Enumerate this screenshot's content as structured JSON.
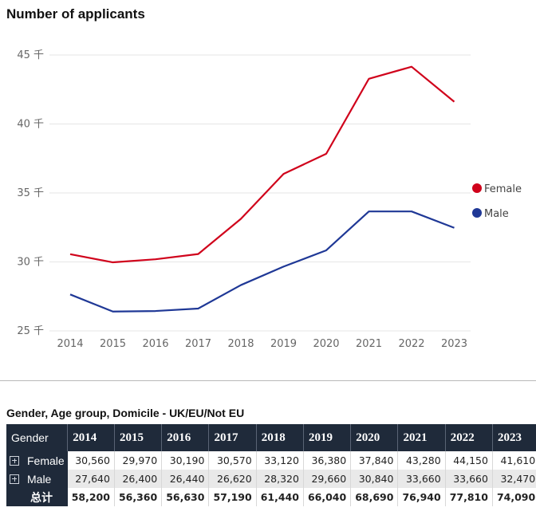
{
  "chart": {
    "title": "Number of applicants"
  },
  "chart_data": {
    "type": "line",
    "title": "Number of applicants",
    "x": [
      "2014",
      "2015",
      "2016",
      "2017",
      "2018",
      "2019",
      "2020",
      "2021",
      "2022",
      "2023"
    ],
    "ylim": [
      25000,
      45000
    ],
    "yticks": [
      25000,
      30000,
      35000,
      40000,
      45000
    ],
    "ytick_labels": [
      "25 千",
      "30 千",
      "35 千",
      "40 千",
      "45 千"
    ],
    "grid": true,
    "legend": "right",
    "series": [
      {
        "name": "Female",
        "color": "#d0021b",
        "values": [
          30560,
          29970,
          30190,
          30570,
          33120,
          36380,
          37840,
          43280,
          44150,
          41610
        ]
      },
      {
        "name": "Male",
        "color": "#1f3896",
        "values": [
          27640,
          26400,
          26440,
          26620,
          28320,
          29660,
          30840,
          33660,
          33660,
          32470
        ]
      }
    ]
  },
  "table": {
    "title": "Gender, Age group, Domicile - UK/EU/Not EU",
    "header_label": "Gender",
    "years": [
      "2014",
      "2015",
      "2016",
      "2017",
      "2018",
      "2019",
      "2020",
      "2021",
      "2022",
      "2023"
    ],
    "rows": [
      {
        "label": "Female",
        "values": [
          "30,560",
          "29,970",
          "30,190",
          "30,570",
          "33,120",
          "36,380",
          "37,840",
          "43,280",
          "44,150",
          "41,610"
        ]
      },
      {
        "label": "Male",
        "values": [
          "27,640",
          "26,400",
          "26,440",
          "26,620",
          "28,320",
          "29,660",
          "30,840",
          "33,660",
          "33,660",
          "32,470"
        ]
      }
    ],
    "total": {
      "label": "总计",
      "values": [
        "58,200",
        "56,360",
        "56,630",
        "57,190",
        "61,440",
        "66,040",
        "68,690",
        "76,940",
        "77,810",
        "74,090"
      ]
    }
  }
}
